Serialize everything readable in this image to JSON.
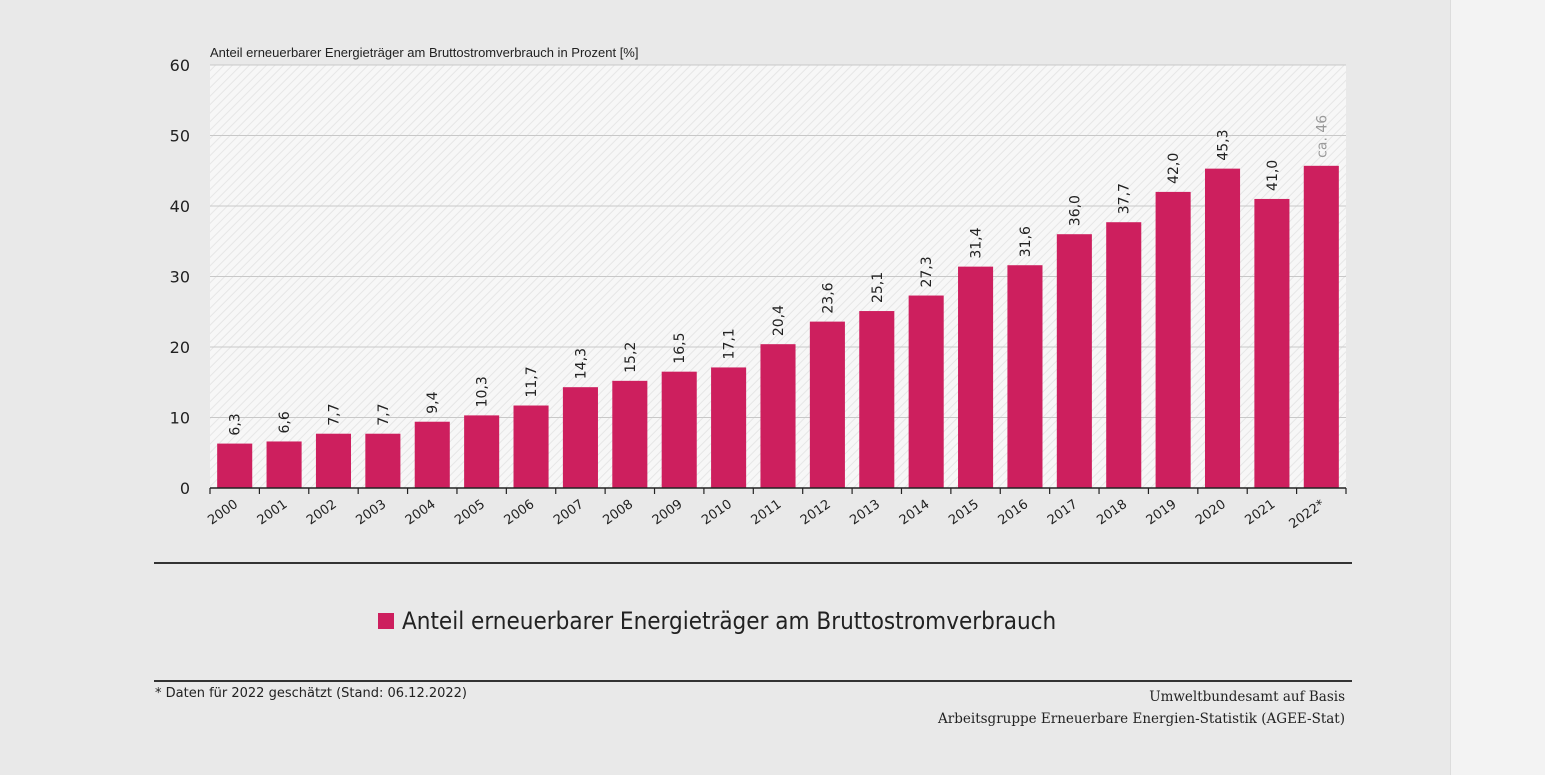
{
  "chart_data": {
    "type": "bar",
    "title": "Anteil erneuerbarer Energieträger am Bruttostromverbrauch in Prozent [%]",
    "xlabel": "",
    "ylabel": "",
    "ylim": [
      0,
      60
    ],
    "yticks": [
      0,
      10,
      20,
      30,
      40,
      50,
      60
    ],
    "grid": true,
    "categories": [
      "2000",
      "2001",
      "2002",
      "2003",
      "2004",
      "2005",
      "2006",
      "2007",
      "2008",
      "2009",
      "2010",
      "2011",
      "2012",
      "2013",
      "2014",
      "2015",
      "2016",
      "2017",
      "2018",
      "2019",
      "2020",
      "2021",
      "2022*"
    ],
    "values": [
      6.3,
      6.6,
      7.7,
      7.7,
      9.4,
      10.3,
      11.7,
      14.3,
      15.2,
      16.5,
      17.1,
      20.4,
      23.6,
      25.1,
      27.3,
      31.4,
      31.6,
      36.0,
      37.7,
      42.0,
      45.3,
      41.0,
      45.7
    ],
    "data_labels": [
      "6,3",
      "6,6",
      "7,7",
      "7,7",
      "9,4",
      "10,3",
      "11,7",
      "14,3",
      "15,2",
      "16,5",
      "17,1",
      "20,4",
      "23,6",
      "25,1",
      "27,3",
      "31,4",
      "31,6",
      "36,0",
      "37,7",
      "42,0",
      "45,3",
      "41,0",
      "ca. 46"
    ],
    "estimated_index": 22,
    "bar_color": "#cd1f5e",
    "legend": "Anteil erneuerbarer Energieträger am Bruttostromverbrauch",
    "legend_position": "bottom-center"
  },
  "footer": {
    "note": "* Daten für 2022 geschätzt (Stand: 06.12.2022)",
    "source_line1": "Umweltbundesamt auf Basis",
    "source_line2": "Arbeitsgruppe Erneuerbare Energien-Statistik (AGEE-Stat)"
  }
}
